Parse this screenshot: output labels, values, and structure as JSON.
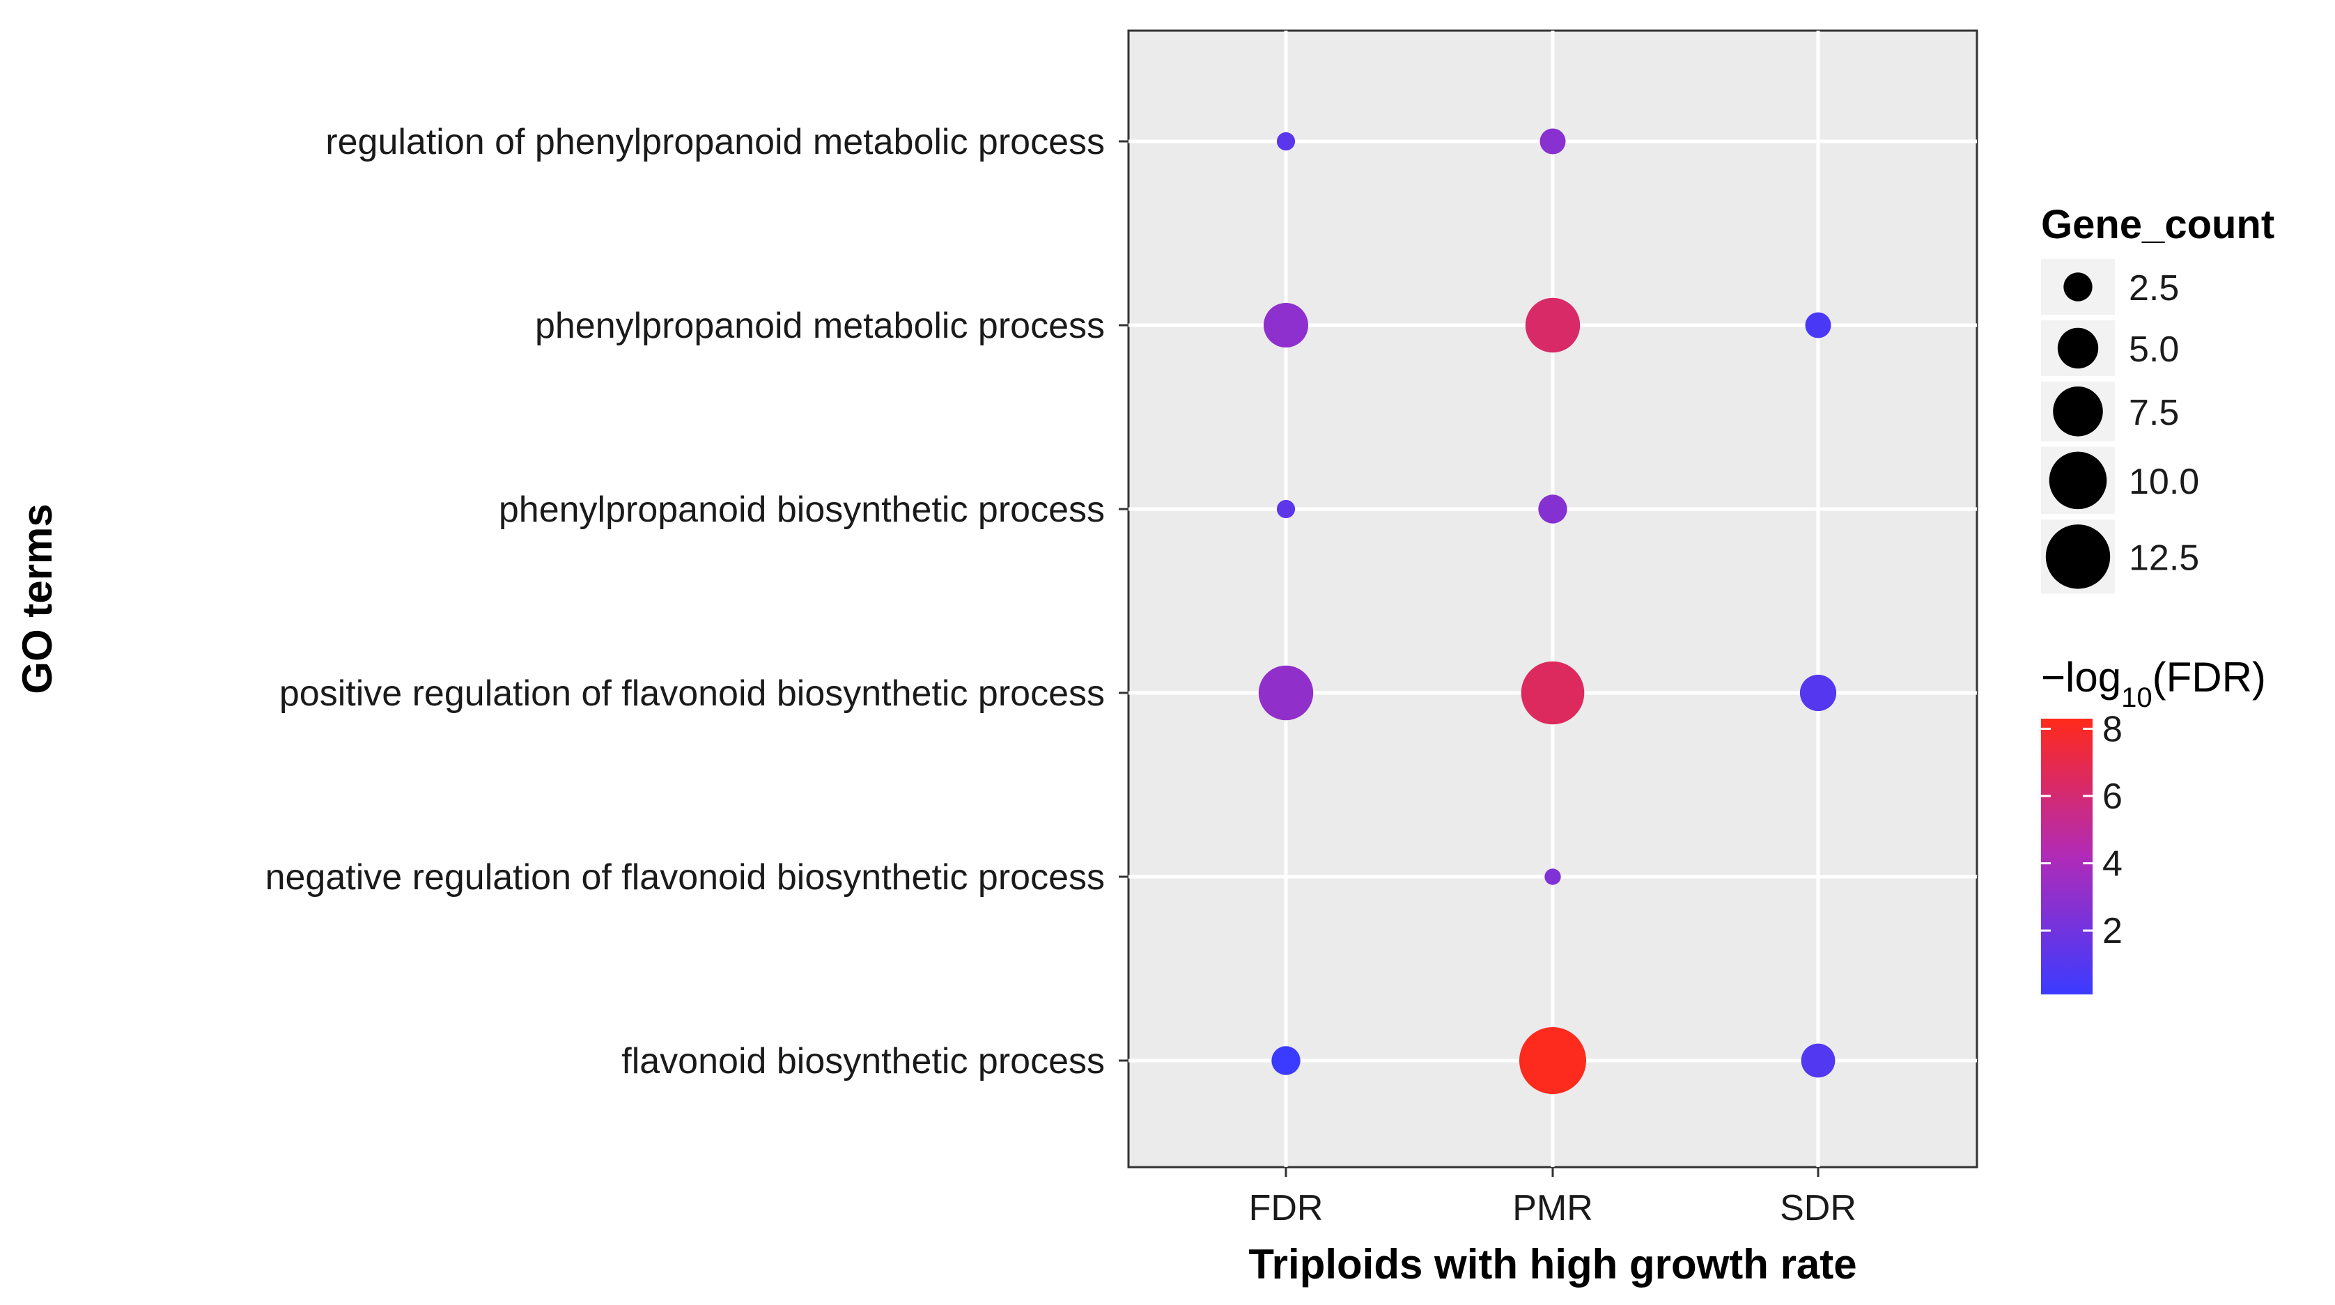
{
  "chart_data": {
    "type": "bubble-dot",
    "title": "",
    "xlabel": "Triploids with high growth rate",
    "ylabel": "GO terms",
    "x_categories": [
      "FDR",
      "PMR",
      "SDR"
    ],
    "y_categories": [
      "regulation of phenylpropanoid metabolic process",
      "phenylpropanoid metabolic process",
      "phenylpropanoid biosynthetic process",
      "positive regulation of flavonoid biosynthetic process",
      "negative regulation of flavonoid biosynthetic process",
      "flavonoid biosynthetic process"
    ],
    "points": [
      {
        "x": "FDR",
        "y": "regulation of phenylpropanoid metabolic process",
        "gene_count": 1,
        "neg_log10_fdr": 1.2
      },
      {
        "x": "PMR",
        "y": "regulation of phenylpropanoid metabolic process",
        "gene_count": 2,
        "neg_log10_fdr": 2.8
      },
      {
        "x": "FDR",
        "y": "phenylpropanoid metabolic process",
        "gene_count": 6,
        "neg_log10_fdr": 3.0
      },
      {
        "x": "PMR",
        "y": "phenylpropanoid metabolic process",
        "gene_count": 9,
        "neg_log10_fdr": 6.3
      },
      {
        "x": "SDR",
        "y": "phenylpropanoid metabolic process",
        "gene_count": 2,
        "neg_log10_fdr": 0.6
      },
      {
        "x": "FDR",
        "y": "phenylpropanoid biosynthetic process",
        "gene_count": 1,
        "neg_log10_fdr": 1.3
      },
      {
        "x": "PMR",
        "y": "phenylpropanoid biosynthetic process",
        "gene_count": 2.5,
        "neg_log10_fdr": 2.7
      },
      {
        "x": "FDR",
        "y": "positive regulation of flavonoid biosynthetic process",
        "gene_count": 9,
        "neg_log10_fdr": 3.1
      },
      {
        "x": "PMR",
        "y": "positive regulation of flavonoid biosynthetic process",
        "gene_count": 12,
        "neg_log10_fdr": 6.5
      },
      {
        "x": "SDR",
        "y": "positive regulation of flavonoid biosynthetic process",
        "gene_count": 4,
        "neg_log10_fdr": 1.0
      },
      {
        "x": "PMR",
        "y": "negative regulation of flavonoid biosynthetic process",
        "gene_count": 0.8,
        "neg_log10_fdr": 2.5
      },
      {
        "x": "FDR",
        "y": "flavonoid biosynthetic process",
        "gene_count": 2.5,
        "neg_log10_fdr": 0.1
      },
      {
        "x": "PMR",
        "y": "flavonoid biosynthetic process",
        "gene_count": 13.5,
        "neg_log10_fdr": 8.2
      },
      {
        "x": "SDR",
        "y": "flavonoid biosynthetic process",
        "gene_count": 3.5,
        "neg_log10_fdr": 0.9
      }
    ],
    "size_legend": {
      "title": "Gene_count",
      "breaks": [
        2.5,
        5.0,
        7.5,
        10.0,
        12.5
      ],
      "labels": [
        "2.5",
        "5.0",
        "7.5",
        "10.0",
        "12.5"
      ],
      "max_value": 13.5
    },
    "color_legend": {
      "title_prefix": "−log",
      "title_subscript": "10",
      "title_suffix": "(FDR)",
      "min": 0.1,
      "max": 8.3,
      "ticks": [
        2,
        4,
        6,
        8
      ],
      "tick_labels": [
        "2",
        "4",
        "6",
        "8"
      ],
      "low_color": "#3b3bff",
      "mid_color": "#b02bb8",
      "high_color": "#ff2a1a"
    },
    "grid": true,
    "panel_background": "#ebebeb",
    "legend_position": "right"
  }
}
